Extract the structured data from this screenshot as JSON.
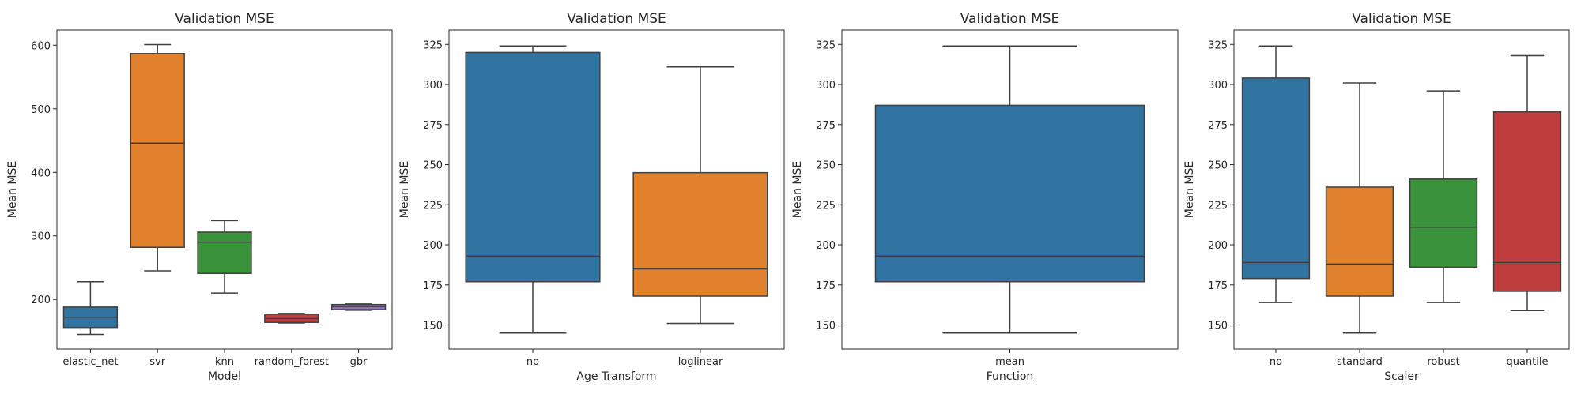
{
  "chart_data": [
    {
      "type": "box",
      "title": "Validation MSE",
      "xlabel": "Model",
      "ylabel": "Mean MSE",
      "ylim": [
        122,
        624
      ],
      "yticks": [
        200,
        300,
        400,
        500,
        600
      ],
      "categories": [
        "elastic_net",
        "svr",
        "knn",
        "random_forest",
        "gbr"
      ],
      "boxes": [
        {
          "category": "elastic_net",
          "whislo": 145,
          "q1": 156,
          "med": 172,
          "q3": 188,
          "whishi": 228,
          "color": "#3274a1"
        },
        {
          "category": "svr",
          "whislo": 245,
          "q1": 282,
          "med": 446,
          "q3": 587,
          "whishi": 601,
          "color": "#e1812c"
        },
        {
          "category": "knn",
          "whislo": 210,
          "q1": 241,
          "med": 290,
          "q3": 306,
          "whishi": 324,
          "color": "#3a923a"
        },
        {
          "category": "random_forest",
          "whislo": 163,
          "q1": 164,
          "med": 170,
          "q3": 177,
          "whishi": 178,
          "color": "#c03d3e"
        },
        {
          "category": "gbr",
          "whislo": 183,
          "q1": 184,
          "med": 189,
          "q3": 192,
          "whishi": 193,
          "color": "#9372b2"
        }
      ],
      "grid": false
    },
    {
      "type": "box",
      "title": "Validation MSE",
      "xlabel": "Age Transform",
      "ylabel": "Mean MSE",
      "ylim": [
        135,
        334
      ],
      "yticks": [
        150,
        175,
        200,
        225,
        250,
        275,
        300,
        325
      ],
      "categories": [
        "no",
        "loglinear"
      ],
      "boxes": [
        {
          "category": "no",
          "whislo": 145,
          "q1": 177,
          "med": 193,
          "q3": 320,
          "whishi": 324,
          "color": "#3274a1"
        },
        {
          "category": "loglinear",
          "whislo": 151,
          "q1": 168,
          "med": 185,
          "q3": 245,
          "whishi": 311,
          "color": "#e1812c"
        }
      ],
      "grid": false
    },
    {
      "type": "box",
      "title": "Validation MSE",
      "xlabel": "Function",
      "ylabel": "Mean MSE",
      "ylim": [
        135,
        334
      ],
      "yticks": [
        150,
        175,
        200,
        225,
        250,
        275,
        300,
        325
      ],
      "categories": [
        "mean"
      ],
      "boxes": [
        {
          "category": "mean",
          "whislo": 145,
          "q1": 177,
          "med": 193,
          "q3": 287,
          "whishi": 324,
          "color": "#3274a1"
        }
      ],
      "grid": false
    },
    {
      "type": "box",
      "title": "Validation MSE",
      "xlabel": "Scaler",
      "ylabel": "Mean MSE",
      "ylim": [
        135,
        334
      ],
      "yticks": [
        150,
        175,
        200,
        225,
        250,
        275,
        300,
        325
      ],
      "categories": [
        "no",
        "standard",
        "robust",
        "quantile"
      ],
      "boxes": [
        {
          "category": "no",
          "whislo": 164,
          "q1": 179,
          "med": 189,
          "q3": 304,
          "whishi": 324,
          "color": "#3274a1"
        },
        {
          "category": "standard",
          "whislo": 145,
          "q1": 168,
          "med": 188,
          "q3": 236,
          "whishi": 301,
          "color": "#e1812c"
        },
        {
          "category": "robust",
          "whislo": 164,
          "q1": 186,
          "med": 211,
          "q3": 241,
          "whishi": 296,
          "color": "#3a923a"
        },
        {
          "category": "quantile",
          "whislo": 159,
          "q1": 171,
          "med": 189,
          "q3": 283,
          "whishi": 318,
          "color": "#c03d3e"
        }
      ],
      "grid": false
    }
  ]
}
